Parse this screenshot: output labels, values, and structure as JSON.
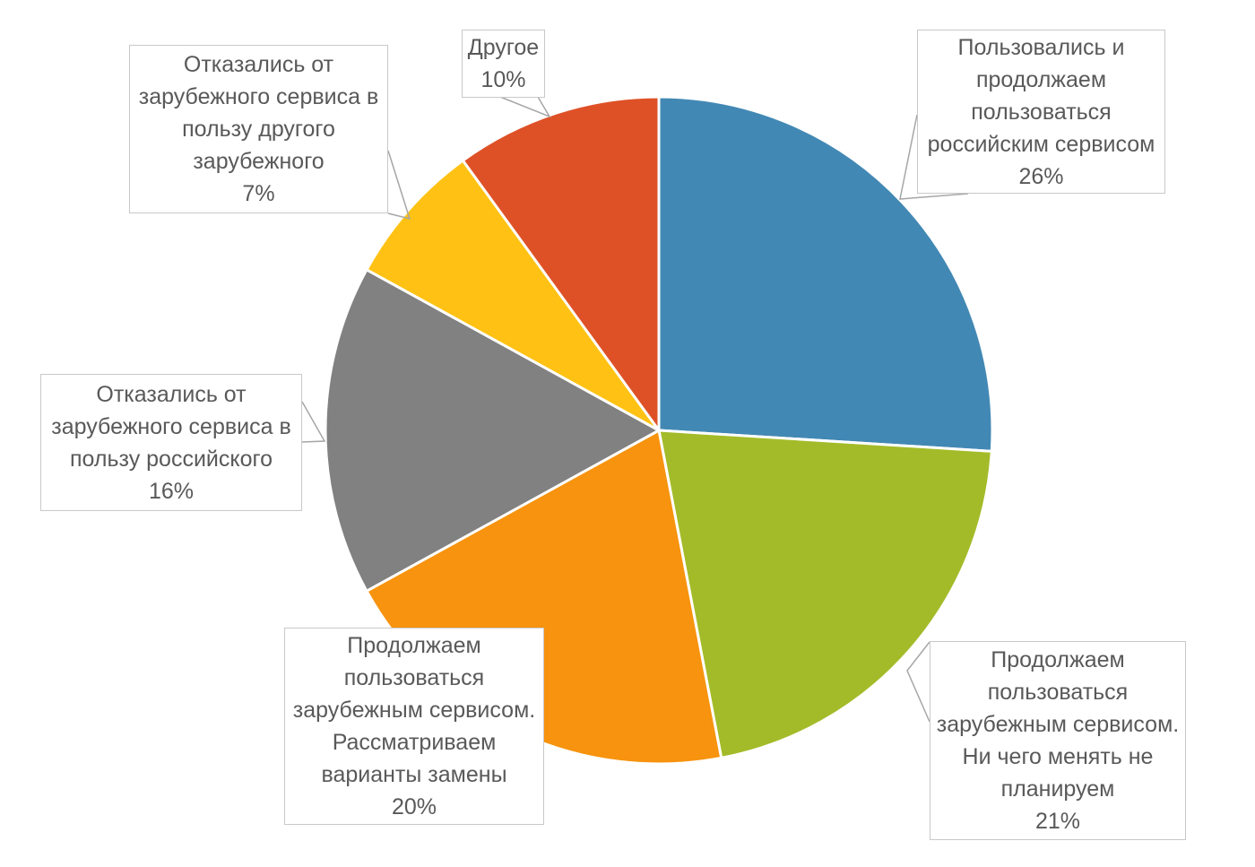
{
  "chart_data": {
    "type": "pie",
    "title": "",
    "unit": "%",
    "total": 100,
    "start_angle_deg": 0,
    "direction": "clockwise",
    "legend_position": "none",
    "label_style": "external callout boxes with category name and percent",
    "slice_border_color": "#ffffff",
    "slices": [
      {
        "label": "Пользовались и\nпродолжаем\nпользоваться\nроссийским сервисом",
        "value": 26,
        "pct_label": "26%",
        "color": "#4288B4"
      },
      {
        "label": "Продолжаем\nпользоваться\nзарубежным сервисом.\nНи чего менять не\nпланируем",
        "value": 21,
        "pct_label": "21%",
        "color": "#A4BB29"
      },
      {
        "label": "Продолжаем\nпользоваться\nзарубежным сервисом.\nРассматриваем\nварианты замены",
        "value": 20,
        "pct_label": "20%",
        "color": "#F7930E"
      },
      {
        "label": "Отказались от\nзарубежного сервиса в\nпользу российского",
        "value": 16,
        "pct_label": "16%",
        "color": "#818181"
      },
      {
        "label": "Отказались от\nзарубежного сервиса в\nпользу другого\nзарубежного",
        "value": 7,
        "pct_label": "7%",
        "color": "#FFC214"
      },
      {
        "label": "Другое",
        "value": 10,
        "pct_label": "10%",
        "color": "#DE5127"
      }
    ]
  },
  "style": {
    "text_color": "#595959",
    "box_border_color": "#c9c9c9",
    "leader_line_color": "#a6a6a6"
  }
}
